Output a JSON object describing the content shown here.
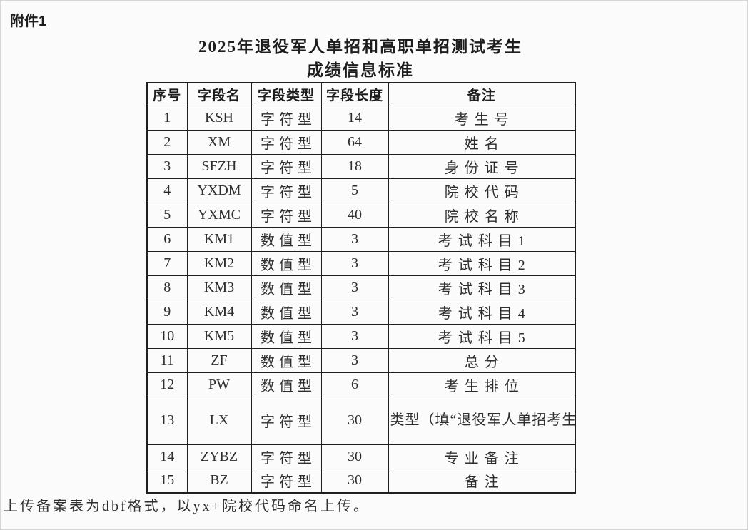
{
  "page": {
    "attachment_label": "附件1",
    "title_line1": "2025年退役军人单招和高职单招测试考生",
    "title_line2": "成绩信息标准",
    "footer_note": "上传备案表为dbf格式，以yx+院校代码命名上传。"
  },
  "table": {
    "headers": [
      "序号",
      "字段名",
      "字段类型",
      "字段长度",
      "备注"
    ],
    "rows": [
      {
        "seq": "1",
        "field_name": "KSH",
        "field_type": "字符型",
        "field_length": "14",
        "remark": "考生号"
      },
      {
        "seq": "2",
        "field_name": "XM",
        "field_type": "字符型",
        "field_length": "64",
        "remark": "姓名"
      },
      {
        "seq": "3",
        "field_name": "SFZH",
        "field_type": "字符型",
        "field_length": "18",
        "remark": "身份证号"
      },
      {
        "seq": "4",
        "field_name": "YXDM",
        "field_type": "字符型",
        "field_length": "5",
        "remark": "院校代码"
      },
      {
        "seq": "5",
        "field_name": "YXMC",
        "field_type": "字符型",
        "field_length": "40",
        "remark": "院校名称"
      },
      {
        "seq": "6",
        "field_name": "KM1",
        "field_type": "数值型",
        "field_length": "3",
        "remark": "考试科目1"
      },
      {
        "seq": "7",
        "field_name": "KM2",
        "field_type": "数值型",
        "field_length": "3",
        "remark": "考试科目2"
      },
      {
        "seq": "8",
        "field_name": "KM3",
        "field_type": "数值型",
        "field_length": "3",
        "remark": "考试科目3"
      },
      {
        "seq": "9",
        "field_name": "KM4",
        "field_type": "数值型",
        "field_length": "3",
        "remark": "考试科目4"
      },
      {
        "seq": "10",
        "field_name": "KM5",
        "field_type": "数值型",
        "field_length": "3",
        "remark": "考试科目5"
      },
      {
        "seq": "11",
        "field_name": "ZF",
        "field_type": "数值型",
        "field_length": "3",
        "remark": "总分"
      },
      {
        "seq": "12",
        "field_name": "PW",
        "field_type": "数值型",
        "field_length": "6",
        "remark": "考生排位"
      },
      {
        "seq": "13",
        "field_name": "LX",
        "field_type": "字符型",
        "field_length": "30",
        "remark": "类型（填“退役军人单招考生”/“普通考生”）",
        "tall": true
      },
      {
        "seq": "14",
        "field_name": "ZYBZ",
        "field_type": "字符型",
        "field_length": "30",
        "remark": "专业备注"
      },
      {
        "seq": "15",
        "field_name": "BZ",
        "field_type": "字符型",
        "field_length": "30",
        "remark": "备注"
      }
    ]
  },
  "colors": {
    "background": "#fbfbfb",
    "border": "#1f1f1f",
    "text": "#2e2e2e"
  }
}
